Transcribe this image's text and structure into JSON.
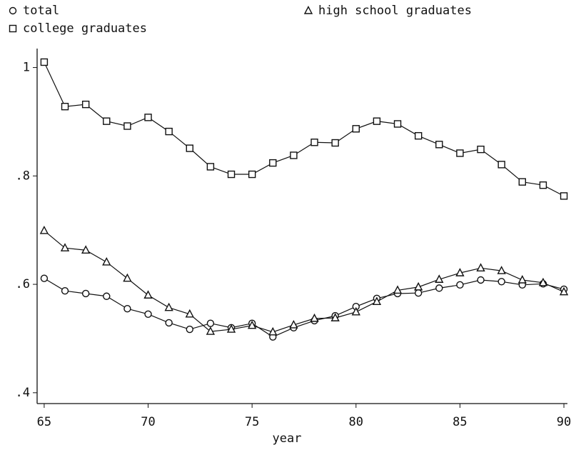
{
  "chart_data": {
    "type": "line",
    "x_label": "year",
    "x": [
      65,
      66,
      67,
      68,
      69,
      70,
      71,
      72,
      73,
      74,
      75,
      76,
      77,
      78,
      79,
      80,
      81,
      82,
      83,
      84,
      85,
      86,
      87,
      88,
      89,
      90
    ],
    "series": [
      {
        "name": "total",
        "color": "#111111",
        "marker": "circle",
        "values": [
          0.611,
          0.588,
          0.583,
          0.578,
          0.555,
          0.545,
          0.529,
          0.517,
          0.528,
          0.52,
          0.528,
          0.503,
          0.52,
          0.533,
          0.542,
          0.559,
          0.574,
          0.583,
          0.584,
          0.593,
          0.599,
          0.608,
          0.605,
          0.599,
          0.601,
          0.591
        ]
      },
      {
        "name": "college graduates",
        "color": "#111111",
        "marker": "square",
        "values": [
          1.01,
          0.928,
          0.932,
          0.901,
          0.892,
          0.908,
          0.882,
          0.851,
          0.817,
          0.803,
          0.803,
          0.824,
          0.838,
          0.862,
          0.861,
          0.887,
          0.901,
          0.896,
          0.874,
          0.858,
          0.842,
          0.849,
          0.821,
          0.789,
          0.783,
          0.763
        ]
      },
      {
        "name": "high school graduates",
        "color": "#111111",
        "marker": "triangle",
        "values": [
          0.699,
          0.667,
          0.663,
          0.641,
          0.611,
          0.58,
          0.557,
          0.545,
          0.513,
          0.517,
          0.524,
          0.512,
          0.525,
          0.537,
          0.538,
          0.549,
          0.568,
          0.589,
          0.595,
          0.609,
          0.621,
          0.63,
          0.625,
          0.608,
          0.603,
          0.586
        ]
      }
    ],
    "xlim": [
      64.66,
      90.17
    ],
    "ylim": [
      0.38,
      1.035
    ],
    "xticks": [
      65,
      70,
      75,
      80,
      85,
      90
    ],
    "yticks": [
      {
        "value": 0.4,
        "label": ".4"
      },
      {
        "value": 0.6,
        "label": ".6"
      },
      {
        "value": 0.8,
        "label": ".8"
      },
      {
        "value": 1,
        "label": "1"
      }
    ],
    "grid": false
  }
}
